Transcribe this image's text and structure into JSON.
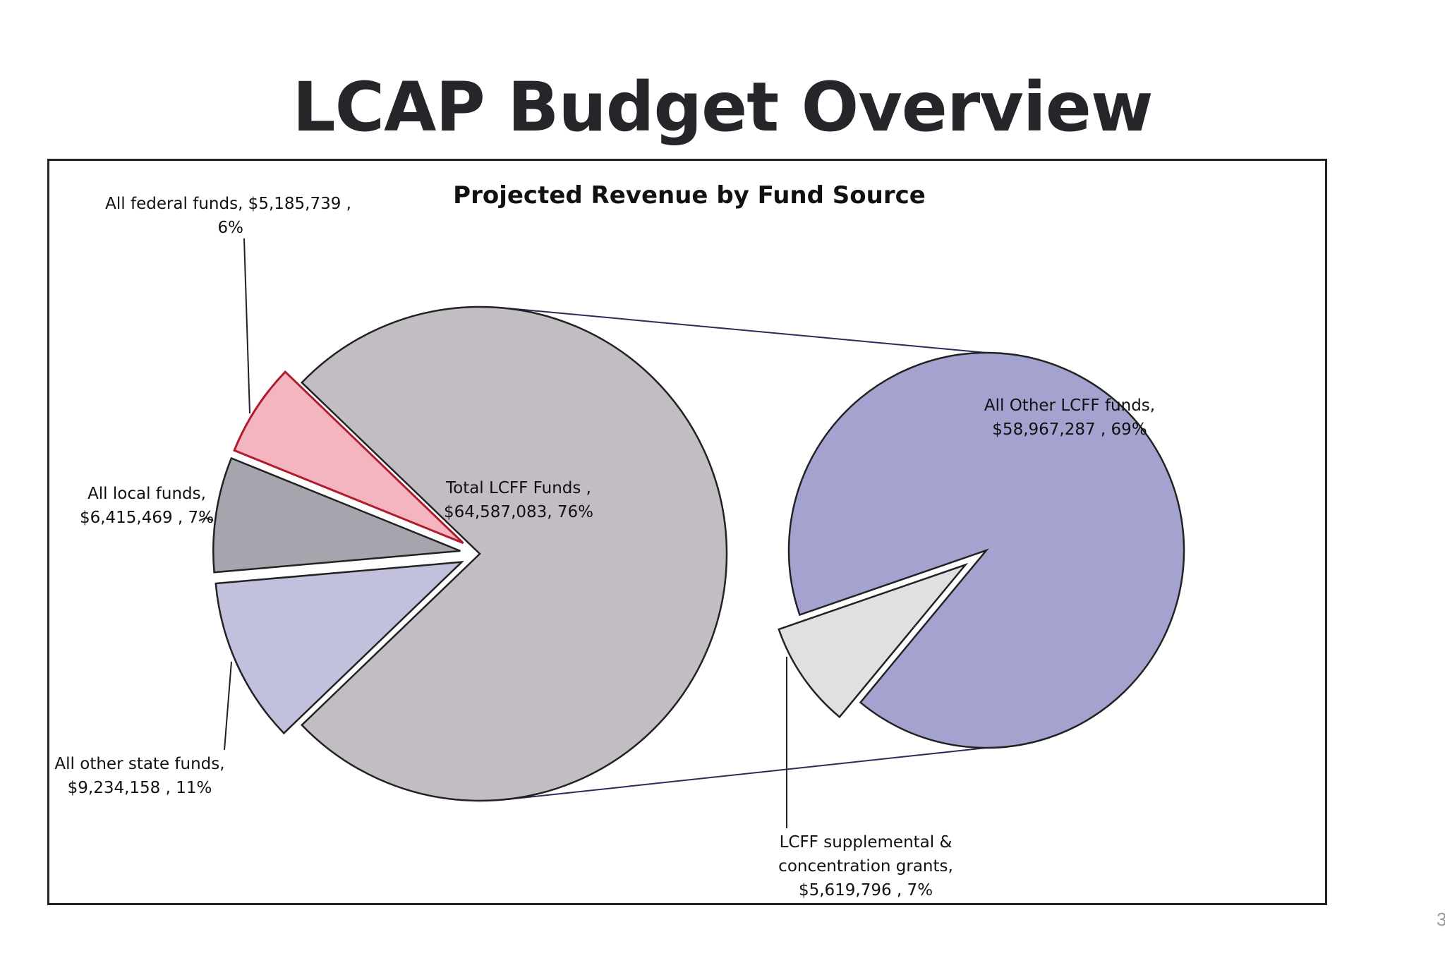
{
  "title": "LCAP Budget Overview",
  "page_number": "3",
  "chart_data": {
    "type": "bar-of-pie",
    "title": "Projected Revenue by Fund Source",
    "primary_pie": {
      "slices": [
        {
          "label_lines": [
            "Total LCFF Funds ,",
            "$64,587,083, 76%"
          ],
          "value": 64587083,
          "percent": 76,
          "color": "#c1bdc2",
          "exploded": false
        },
        {
          "label_lines": [
            "All other state funds,",
            "$9,234,158 , 11%"
          ],
          "value": 9234158,
          "percent": 11,
          "color": "#c1c1de",
          "exploded": true
        },
        {
          "label_lines": [
            "All local funds,",
            "$6,415,469 , 7%"
          ],
          "value": 6415469,
          "percent": 7,
          "color": "#a6a4ad",
          "exploded": true
        },
        {
          "label_lines": [
            "All federal funds,  $5,185,739 ,",
            "6%"
          ],
          "value": 5185739,
          "percent": 6,
          "color": "#f5b5c0",
          "stroke": "#b01c2e",
          "exploded": true
        }
      ]
    },
    "secondary_pie": {
      "slices": [
        {
          "label_lines": [
            "All Other LCFF funds,",
            "$58,967,287 , 69%"
          ],
          "value": 58967287,
          "percent": 69,
          "color": "#a4a3cf",
          "exploded": false
        },
        {
          "label_lines": [
            "LCFF supplemental &",
            "concentration grants,",
            "$5,619,796 , 7%"
          ],
          "value": 5619796,
          "percent": 7,
          "color": "#e1dfe2",
          "exploded": true
        }
      ]
    },
    "legend": "none"
  }
}
